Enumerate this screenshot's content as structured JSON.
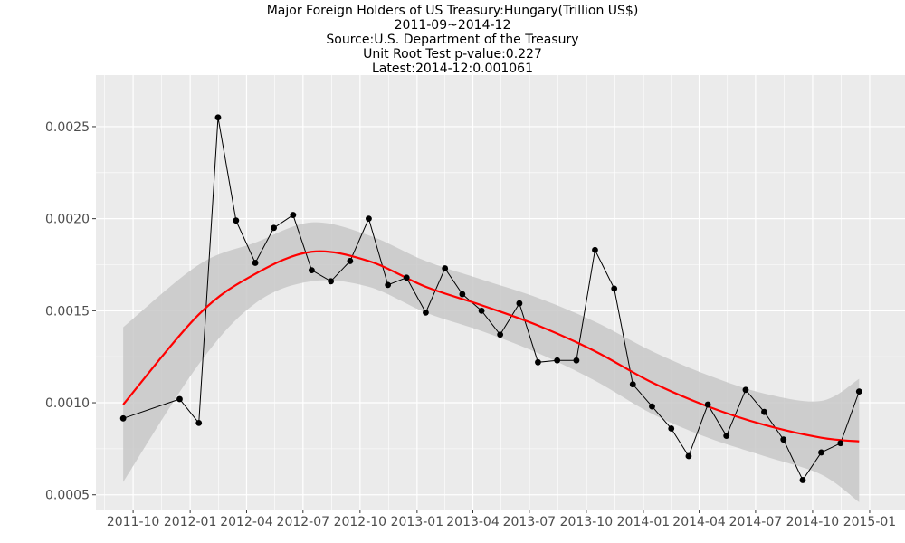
{
  "chart_data": {
    "type": "line",
    "title_lines": [
      "Major Foreign Holders of US Treasury:Hungary(Trillion US$)",
      "2011-09~2014-12",
      "Source:U.S. Department of the Treasury",
      "Unit Root Test p-value:0.227",
      "Latest:2014-12:0.001061"
    ],
    "xlabel": "",
    "ylabel": "",
    "x_ticks": [
      "2011-10",
      "2012-01",
      "2012-04",
      "2012-07",
      "2012-10",
      "2013-01",
      "2013-04",
      "2013-07",
      "2013-10",
      "2014-01",
      "2014-04",
      "2014-07",
      "2014-10",
      "2015-01"
    ],
    "y_ticks": [
      0.0005,
      0.001,
      0.0015,
      0.002,
      0.0025
    ],
    "y_tick_labels": [
      "0.0005",
      "0.0010",
      "0.0015",
      "0.0020",
      "0.0025"
    ],
    "xlim": [
      "2011-08-02",
      "2015-02-27"
    ],
    "ylim": [
      0.00042,
      0.00278
    ],
    "grid": true,
    "colors": {
      "panel": "#ebebeb",
      "grid": "#ffffff",
      "line": "#000000",
      "points": "#000000",
      "smooth": "#ff0000",
      "band": "#c8c8c8"
    },
    "series": [
      {
        "dates": [
          "2011-09",
          "2011-12",
          "2012-01",
          "2012-02",
          "2012-03",
          "2012-04",
          "2012-05",
          "2012-06",
          "2012-07",
          "2012-08",
          "2012-09",
          "2012-10",
          "2012-11",
          "2012-12",
          "2013-01",
          "2013-02",
          "2013-03",
          "2013-04",
          "2013-05",
          "2013-06",
          "2013-07",
          "2013-08",
          "2013-09",
          "2013-10",
          "2013-11",
          "2013-12",
          "2014-01",
          "2014-02",
          "2014-03",
          "2014-04",
          "2014-05",
          "2014-06",
          "2014-07",
          "2014-08",
          "2014-09",
          "2014-10",
          "2014-11",
          "2014-12"
        ],
        "values": [
          0.000915,
          0.00102,
          0.00089,
          0.00255,
          0.00199,
          0.00176,
          0.00195,
          0.00202,
          0.00172,
          0.00166,
          0.00177,
          0.002,
          0.00164,
          0.00168,
          0.00149,
          0.00173,
          0.00159,
          0.0015,
          0.00137,
          0.00154,
          0.00122,
          0.00123,
          0.00123,
          0.00183,
          0.00162,
          0.0011,
          0.00098,
          0.00086,
          0.00071,
          0.00099,
          0.00082,
          0.00107,
          0.00095,
          0.0008,
          0.00058,
          0.00073,
          0.00078,
          0.001061
        ]
      }
    ],
    "smooth": {
      "dates": [
        "2011-09",
        "2012-01",
        "2012-04",
        "2012-07",
        "2012-10",
        "2013-01",
        "2013-04",
        "2013-07",
        "2013-10",
        "2014-01",
        "2014-04",
        "2014-07",
        "2014-10",
        "2014-12"
      ],
      "fit": [
        0.00099,
        0.00148,
        0.0017,
        0.00182,
        0.00177,
        0.00163,
        0.00153,
        0.00142,
        0.00128,
        0.00111,
        0.00098,
        0.00088,
        0.00081,
        0.00079
      ],
      "lower": [
        0.00057,
        0.00121,
        0.00154,
        0.00166,
        0.00163,
        0.00149,
        0.00139,
        0.00127,
        0.00112,
        0.00094,
        0.00081,
        0.00071,
        0.00061,
        0.00046
      ],
      "upper": [
        0.00141,
        0.00175,
        0.00187,
        0.00198,
        0.00191,
        0.00177,
        0.00167,
        0.00157,
        0.00144,
        0.00128,
        0.00115,
        0.00105,
        0.00101,
        0.00113
      ]
    }
  }
}
